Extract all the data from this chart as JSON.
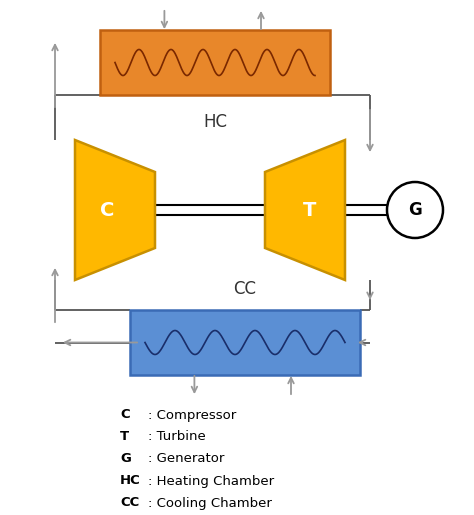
{
  "bg_color": "#ffffff",
  "orange_edge": "#C06010",
  "orange_fill": "#E8872A",
  "blue_fill": "#5B8FD4",
  "blue_edge": "#3A6BB5",
  "yellow_fill": "#FFB800",
  "yellow_edge": "#C89000",
  "arrow_color": "#999999",
  "line_color": "#555555",
  "text_color": "#333333",
  "legend_bold": [
    "C",
    "T",
    "G",
    "HC",
    "CC"
  ],
  "legend_text": [
    ": Compressor",
    ": Turbine",
    ": Generator",
    ": Heating Chamber",
    ": Cooling Chamber"
  ],
  "hc_label": "HC",
  "cc_label": "CC",
  "compressor_label": "C",
  "turbine_label": "T",
  "generator_label": "G"
}
